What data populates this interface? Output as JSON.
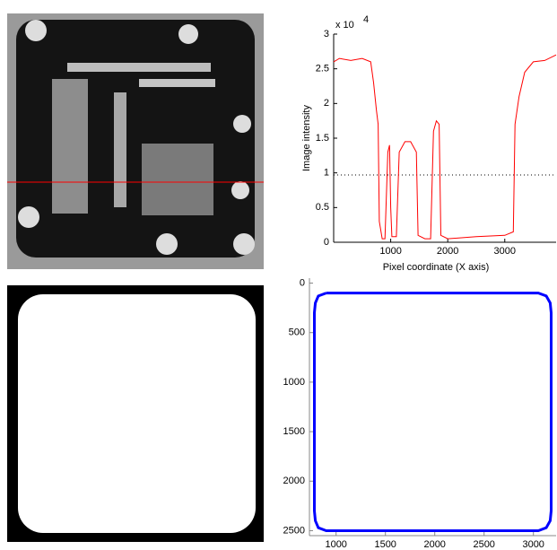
{
  "chart_data": [
    {
      "type": "line",
      "xlabel": "Pixel coordinate (X axis)",
      "ylabel": "Image intensity",
      "y_multiplier": "x 10",
      "y_multiplier_exp": "4",
      "x": [
        0,
        100,
        300,
        500,
        650,
        700,
        750,
        780,
        800,
        850,
        900,
        950,
        980,
        1000,
        1020,
        1100,
        1150,
        1250,
        1350,
        1450,
        1480,
        1600,
        1700,
        1750,
        1800,
        1850,
        1880,
        2000,
        2500,
        3000,
        3150,
        3180,
        3250,
        3350,
        3500,
        3700,
        3900
      ],
      "series": [
        {
          "color": "#ff0000",
          "values": [
            2.6,
            2.65,
            2.62,
            2.65,
            2.6,
            2.3,
            1.9,
            1.7,
            0.3,
            0.05,
            0.05,
            1.3,
            1.4,
            0.5,
            0.08,
            0.08,
            1.3,
            1.45,
            1.45,
            1.3,
            0.1,
            0.05,
            0.05,
            1.6,
            1.75,
            1.7,
            0.1,
            0.05,
            0.08,
            0.1,
            0.15,
            1.7,
            2.1,
            2.45,
            2.6,
            2.62,
            2.7
          ]
        }
      ],
      "threshold": 0.97,
      "xlim": [
        0,
        3900
      ],
      "ylim": [
        0,
        3
      ],
      "xticks": [
        1000,
        2000,
        3000
      ],
      "yticks": [
        0,
        0.5,
        1,
        1.5,
        2,
        2.5,
        3
      ]
    },
    {
      "type": "line",
      "y_reversed": true,
      "x": [
        900,
        3050,
        3130,
        3170,
        3180,
        3180,
        3170,
        3130,
        3050,
        900,
        820,
        790,
        780,
        780,
        790,
        820,
        900
      ],
      "series": [
        {
          "color": "#0000ff",
          "values": [
            100,
            100,
            130,
            200,
            300,
            2300,
            2400,
            2470,
            2500,
            2500,
            2470,
            2400,
            2300,
            300,
            200,
            130,
            100
          ]
        }
      ],
      "xlim": [
        730,
        3230
      ],
      "ylim": [
        -50,
        2550
      ],
      "xticks": [
        1000,
        1500,
        2000,
        2500,
        3000
      ],
      "yticks": [
        0,
        500,
        1000,
        1500,
        2000,
        2500
      ]
    }
  ]
}
